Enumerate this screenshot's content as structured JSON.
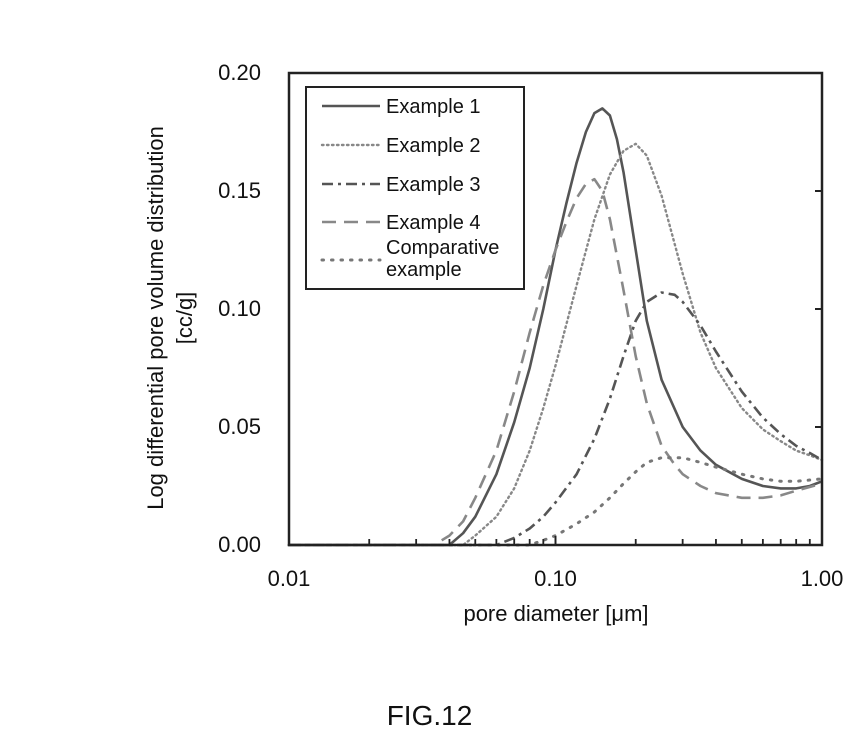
{
  "figure": {
    "caption": "FIG.12"
  },
  "chart_data": {
    "type": "line",
    "xscale": "log",
    "xlim": [
      0.01,
      1.0
    ],
    "ylim": [
      0.0,
      0.2
    ],
    "xlabel": "pore diameter [μm]",
    "ylabel_lines": [
      "Log differential pore volume distribution",
      "[cc/g]"
    ],
    "x_ticks": [
      {
        "value": 0.01,
        "label": "0.01"
      },
      {
        "value": 0.1,
        "label": "0.10"
      },
      {
        "value": 1.0,
        "label": "1.00"
      }
    ],
    "y_ticks": [
      {
        "value": 0.0,
        "label": "0.00"
      },
      {
        "value": 0.05,
        "label": "0.05"
      },
      {
        "value": 0.1,
        "label": "0.10"
      },
      {
        "value": 0.15,
        "label": "0.15"
      },
      {
        "value": 0.2,
        "label": "0.20"
      }
    ],
    "grid": false,
    "legend_position": "top-left",
    "series": [
      {
        "name": "Example 1",
        "style": "solid",
        "color": "#555555",
        "x": [
          0.01,
          0.04,
          0.045,
          0.05,
          0.06,
          0.07,
          0.08,
          0.09,
          0.1,
          0.11,
          0.12,
          0.13,
          0.14,
          0.15,
          0.16,
          0.17,
          0.18,
          0.2,
          0.22,
          0.25,
          0.3,
          0.35,
          0.4,
          0.5,
          0.6,
          0.7,
          0.8,
          0.9,
          1.0
        ],
        "y": [
          0.0,
          0.0,
          0.005,
          0.012,
          0.03,
          0.052,
          0.075,
          0.1,
          0.125,
          0.145,
          0.162,
          0.175,
          0.183,
          0.185,
          0.182,
          0.172,
          0.158,
          0.125,
          0.095,
          0.07,
          0.05,
          0.04,
          0.034,
          0.028,
          0.025,
          0.024,
          0.024,
          0.025,
          0.027
        ]
      },
      {
        "name": "Example 2",
        "style": "dotted",
        "color": "#888888",
        "x": [
          0.01,
          0.045,
          0.05,
          0.06,
          0.07,
          0.08,
          0.09,
          0.1,
          0.12,
          0.14,
          0.16,
          0.18,
          0.2,
          0.22,
          0.25,
          0.3,
          0.35,
          0.4,
          0.5,
          0.6,
          0.7,
          0.8,
          0.9,
          1.0
        ],
        "y": [
          0.0,
          0.0,
          0.004,
          0.012,
          0.024,
          0.04,
          0.058,
          0.076,
          0.11,
          0.138,
          0.157,
          0.167,
          0.17,
          0.165,
          0.148,
          0.115,
          0.09,
          0.075,
          0.058,
          0.049,
          0.044,
          0.04,
          0.038,
          0.036
        ]
      },
      {
        "name": "Example 3",
        "style": "dashdot",
        "color": "#555555",
        "x": [
          0.01,
          0.06,
          0.07,
          0.08,
          0.09,
          0.1,
          0.12,
          0.14,
          0.16,
          0.18,
          0.2,
          0.22,
          0.25,
          0.28,
          0.3,
          0.35,
          0.4,
          0.5,
          0.6,
          0.7,
          0.8,
          0.9,
          1.0
        ],
        "y": [
          0.0,
          0.0,
          0.003,
          0.007,
          0.012,
          0.018,
          0.03,
          0.045,
          0.062,
          0.08,
          0.095,
          0.103,
          0.107,
          0.106,
          0.103,
          0.093,
          0.082,
          0.065,
          0.054,
          0.047,
          0.042,
          0.039,
          0.036
        ]
      },
      {
        "name": "Example 4",
        "style": "dashed",
        "color": "#888888",
        "x": [
          0.01,
          0.035,
          0.04,
          0.045,
          0.05,
          0.06,
          0.07,
          0.08,
          0.09,
          0.1,
          0.11,
          0.12,
          0.13,
          0.14,
          0.15,
          0.16,
          0.18,
          0.2,
          0.22,
          0.25,
          0.28,
          0.3,
          0.35,
          0.4,
          0.5,
          0.6,
          0.7,
          0.8,
          1.0
        ],
        "y": [
          0.0,
          0.0,
          0.004,
          0.01,
          0.02,
          0.04,
          0.065,
          0.09,
          0.11,
          0.125,
          0.137,
          0.147,
          0.153,
          0.155,
          0.15,
          0.138,
          0.108,
          0.08,
          0.06,
          0.042,
          0.034,
          0.03,
          0.025,
          0.022,
          0.02,
          0.02,
          0.021,
          0.023,
          0.026
        ]
      },
      {
        "name": "Comparative example",
        "legend_lines": [
          "Comparative",
          "example"
        ],
        "style": "sparse-dotted",
        "color": "#777777",
        "x": [
          0.01,
          0.08,
          0.09,
          0.1,
          0.12,
          0.14,
          0.16,
          0.18,
          0.2,
          0.22,
          0.25,
          0.3,
          0.35,
          0.4,
          0.5,
          0.6,
          0.7,
          0.8,
          1.0
        ],
        "y": [
          0.0,
          0.0,
          0.002,
          0.004,
          0.009,
          0.014,
          0.02,
          0.026,
          0.031,
          0.035,
          0.037,
          0.037,
          0.035,
          0.033,
          0.03,
          0.028,
          0.027,
          0.027,
          0.028
        ]
      }
    ]
  }
}
